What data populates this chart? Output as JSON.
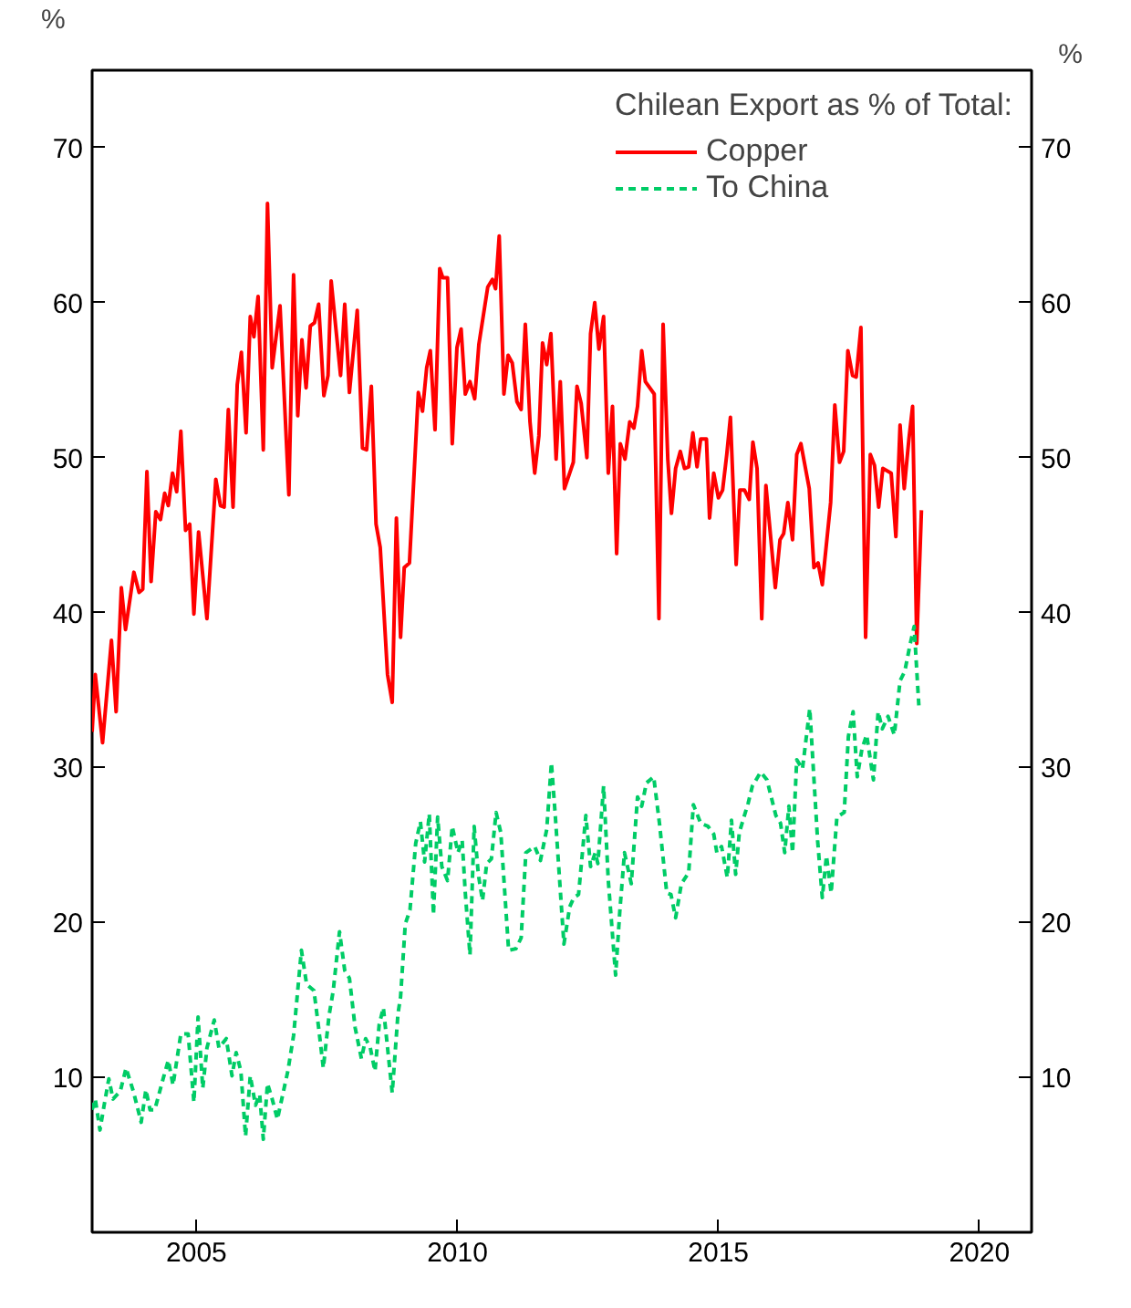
{
  "chart_data": {
    "type": "line",
    "legend_title": "Chilean Export as % of Total:",
    "ylabel": "%",
    "y2label": "%",
    "xlim": [
      2003,
      2021
    ],
    "xticks": [
      2005,
      2010,
      2015,
      2020
    ],
    "ylim": [
      0,
      75
    ],
    "yticks": [
      10,
      20,
      30,
      40,
      50,
      60,
      70
    ],
    "y2lim": [
      0,
      75
    ],
    "y2ticks": [
      10,
      20,
      30,
      40,
      50,
      60,
      70
    ],
    "grid": false,
    "legend": "top right",
    "series": [
      {
        "name": "Copper",
        "color": "#ff0000",
        "line_style": "solid",
        "x": [
          2003.0,
          2003.06,
          2003.2,
          2003.37,
          2003.46,
          2003.56,
          2003.64,
          2003.8,
          2003.9,
          2003.97,
          2004.05,
          2004.13,
          2004.22,
          2004.31,
          2004.39,
          2004.46,
          2004.54,
          2004.62,
          2004.7,
          2004.79,
          2004.87,
          2004.95,
          2005.04,
          2005.2,
          2005.37,
          2005.46,
          2005.53,
          2005.61,
          2005.7,
          2005.78,
          2005.86,
          2005.95,
          2006.03,
          2006.1,
          2006.18,
          2006.28,
          2006.36,
          2006.45,
          2006.6,
          2006.77,
          2006.86,
          2006.94,
          2007.02,
          2007.1,
          2007.18,
          2007.26,
          2007.34,
          2007.44,
          2007.52,
          2007.58,
          2007.76,
          2007.84,
          2007.93,
          2008.08,
          2008.18,
          2008.26,
          2008.35,
          2008.44,
          2008.52,
          2008.66,
          2008.75,
          2008.83,
          2008.91,
          2008.98,
          2009.08,
          2009.25,
          2009.33,
          2009.41,
          2009.48,
          2009.57,
          2009.66,
          2009.72,
          2009.81,
          2009.9,
          2009.99,
          2010.07,
          2010.15,
          2010.24,
          2010.33,
          2010.41,
          2010.58,
          2010.67,
          2010.73,
          2010.8,
          2010.89,
          2010.97,
          2011.05,
          2011.14,
          2011.22,
          2011.3,
          2011.39,
          2011.48,
          2011.56,
          2011.63,
          2011.71,
          2011.79,
          2011.89,
          2011.97,
          2012.05,
          2012.22,
          2012.29,
          2012.37,
          2012.48,
          2012.55,
          2012.63,
          2012.71,
          2012.8,
          2012.89,
          2012.97,
          2013.05,
          2013.12,
          2013.21,
          2013.3,
          2013.38,
          2013.45,
          2013.53,
          2013.6,
          2013.77,
          2013.86,
          2013.94,
          2014.03,
          2014.1,
          2014.18,
          2014.27,
          2014.35,
          2014.43,
          2014.51,
          2014.59,
          2014.66,
          2014.77,
          2014.83,
          2014.91,
          2015.0,
          2015.08,
          2015.16,
          2015.23,
          2015.34,
          2015.41,
          2015.5,
          2015.59,
          2015.66,
          2015.74,
          2015.83,
          2015.91,
          2016.0,
          2016.09,
          2016.18,
          2016.25,
          2016.33,
          2016.42,
          2016.5,
          2016.58,
          2016.74,
          2016.83,
          2016.91,
          2016.99,
          2017.15,
          2017.23,
          2017.32,
          2017.4,
          2017.48,
          2017.57,
          2017.64,
          2017.73,
          2017.82,
          2017.91,
          2017.99,
          2018.07,
          2018.15,
          2018.31,
          2018.4,
          2018.48,
          2018.56,
          2018.65,
          2018.72,
          2018.8,
          2018.89
        ],
        "values": [
          32.3,
          36,
          31.6,
          38.2,
          33.6,
          41.6,
          38.9,
          42.6,
          41.3,
          41.5,
          49.1,
          42,
          46.5,
          46,
          47.7,
          46.9,
          49,
          47.8,
          51.7,
          45.3,
          45.7,
          39.9,
          45.2,
          39.6,
          48.6,
          46.9,
          46.8,
          53.1,
          46.8,
          54.7,
          56.8,
          51.6,
          59.1,
          57.8,
          60.4,
          50.5,
          66.4,
          55.8,
          59.8,
          47.6,
          61.8,
          52.7,
          57.6,
          54.5,
          58.5,
          58.7,
          59.9,
          54,
          55.3,
          61.4,
          55.3,
          59.9,
          54.2,
          59.5,
          50.6,
          50.5,
          54.6,
          45.7,
          44.2,
          36,
          34.2,
          46.1,
          38.4,
          42.9,
          43.2,
          54.2,
          53,
          55.8,
          56.9,
          51.8,
          62.2,
          61.6,
          61.6,
          50.9,
          57.1,
          58.3,
          54.1,
          54.9,
          53.8,
          57.3,
          61,
          61.5,
          60.9,
          64.3,
          54.1,
          56.6,
          56.1,
          53.6,
          53.1,
          58.6,
          52.3,
          49,
          51.4,
          57.4,
          56,
          58,
          49.9,
          54.9,
          48,
          49.7,
          54.6,
          53.5,
          50,
          58,
          60,
          57,
          59.1,
          49,
          53.3,
          43.8,
          50.9,
          49.9,
          52.3,
          51.9,
          53.3,
          56.9,
          54.9,
          54.1,
          39.6,
          58.6,
          49.9,
          46.4,
          49.3,
          50.4,
          49.3,
          49.4,
          51.6,
          49.4,
          51.2,
          51.2,
          46.1,
          49,
          47.4,
          47.9,
          50.2,
          52.6,
          43.1,
          47.9,
          47.9,
          47.3,
          51,
          49.3,
          39.6,
          48.2,
          44.9,
          41.6,
          44.7,
          45.1,
          47.1,
          44.7,
          50.2,
          50.9,
          48,
          42.9,
          43.2,
          41.8,
          47.1,
          53.4,
          49.7,
          50.4,
          56.9,
          55.3,
          55.2,
          58.4,
          38.4,
          50.2,
          49.5,
          46.8,
          49.3,
          49,
          44.9,
          52.1,
          48,
          51.2,
          53.3,
          38,
          46.6
        ]
      },
      {
        "name": "To China",
        "color": "#00cc66",
        "line_style": "dashed",
        "x": [
          2003.0,
          2003.06,
          2003.15,
          2003.23,
          2003.32,
          2003.4,
          2003.54,
          2003.65,
          2003.79,
          2003.94,
          2004.03,
          2004.11,
          2004.2,
          2004.36,
          2004.46,
          2004.55,
          2004.7,
          2004.84,
          2004.95,
          2005.03,
          2005.12,
          2005.2,
          2005.34,
          2005.43,
          2005.57,
          2005.68,
          2005.76,
          2005.85,
          2005.94,
          2006.03,
          2006.13,
          2006.21,
          2006.28,
          2006.36,
          2006.45,
          2006.55,
          2006.75,
          2006.86,
          2007.01,
          2007.11,
          2007.25,
          2007.34,
          2007.43,
          2007.54,
          2007.62,
          2007.74,
          2007.84,
          2007.93,
          2008.04,
          2008.16,
          2008.24,
          2008.33,
          2008.42,
          2008.5,
          2008.58,
          2008.67,
          2008.75,
          2008.86,
          2008.91,
          2009.0,
          2009.09,
          2009.2,
          2009.29,
          2009.37,
          2009.46,
          2009.54,
          2009.62,
          2009.7,
          2009.81,
          2009.9,
          2010.01,
          2010.09,
          2010.15,
          2010.24,
          2010.32,
          2010.4,
          2010.48,
          2010.56,
          2010.65,
          2010.74,
          2010.83,
          2010.98,
          2011.12,
          2011.22,
          2011.31,
          2011.48,
          2011.59,
          2011.71,
          2011.8,
          2011.87,
          2012.04,
          2012.15,
          2012.23,
          2012.32,
          2012.46,
          2012.55,
          2012.64,
          2012.69,
          2012.8,
          2012.89,
          2013.03,
          2013.11,
          2013.2,
          2013.33,
          2013.45,
          2013.53,
          2013.62,
          2013.76,
          2013.87,
          2014.01,
          2014.09,
          2014.18,
          2014.29,
          2014.43,
          2014.52,
          2014.66,
          2014.8,
          2014.91,
          2014.97,
          2015.06,
          2015.17,
          2015.25,
          2015.33,
          2015.4,
          2015.57,
          2015.65,
          2015.81,
          2015.93,
          2016.1,
          2016.19,
          2016.27,
          2016.35,
          2016.42,
          2016.5,
          2016.61,
          2016.75,
          2016.9,
          2016.99,
          2017.07,
          2017.16,
          2017.27,
          2017.41,
          2017.49,
          2017.58,
          2017.66,
          2017.75,
          2017.84,
          2017.97,
          2018.06,
          2018.14,
          2018.25,
          2018.37,
          2018.48,
          2018.57,
          2018.67,
          2018.75,
          2018.84
        ],
        "values": [
          7.9,
          8.6,
          6.6,
          8.2,
          9.9,
          8.6,
          9.1,
          10.6,
          9.1,
          7.1,
          9.2,
          7.9,
          7.9,
          9.9,
          11.1,
          9.5,
          12.8,
          12.8,
          8.4,
          13.9,
          9.3,
          11.9,
          13.7,
          11.9,
          12.5,
          10.1,
          11.6,
          10.4,
          6.2,
          10.1,
          8.2,
          8.9,
          6,
          9.6,
          8.6,
          7.3,
          10.4,
          12.7,
          18.2,
          16,
          15.6,
          13.2,
          10.6,
          14,
          15.6,
          19.4,
          16.9,
          16.4,
          13.2,
          11.2,
          12.5,
          11.9,
          10.4,
          13.4,
          14.5,
          11.6,
          9,
          14.1,
          15.2,
          19.9,
          20.8,
          25.1,
          26.5,
          23.9,
          27,
          20.5,
          26.8,
          23.6,
          22.7,
          26.2,
          24.5,
          25.3,
          21.9,
          17.9,
          26.2,
          23.1,
          21.4,
          23.8,
          24.1,
          27.1,
          25.8,
          18.2,
          18.3,
          19,
          24.5,
          24.9,
          24,
          26,
          30.3,
          27.1,
          18.6,
          21,
          21.6,
          21.8,
          26.9,
          23.6,
          24.5,
          23.8,
          28.8,
          22.7,
          16.6,
          20.7,
          24.5,
          22.5,
          28.1,
          27.5,
          29,
          29.4,
          26.4,
          21.9,
          21.8,
          20.3,
          22.5,
          23.2,
          27.6,
          26.4,
          26.2,
          25.7,
          24.5,
          24.9,
          22.9,
          26.6,
          23.1,
          25.8,
          27.7,
          28.8,
          29.7,
          29.2,
          26.9,
          26.4,
          24.5,
          27.5,
          24.5,
          30.5,
          29.9,
          33.8,
          25.3,
          21.6,
          24.3,
          21.9,
          26.8,
          27.1,
          32,
          33.6,
          29.4,
          31.2,
          32.1,
          29.2,
          33.6,
          32.5,
          33.3,
          32.1,
          35.6,
          36.2,
          37.9,
          39.1,
          34
        ]
      }
    ]
  }
}
